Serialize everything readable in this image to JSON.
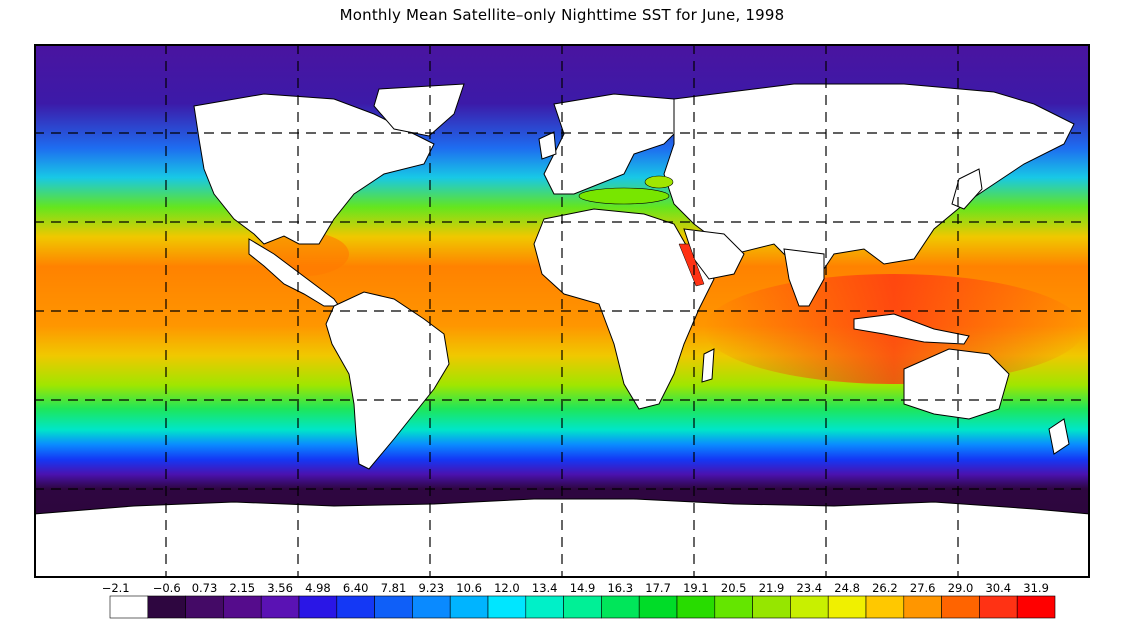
{
  "title": "Monthly Mean Satellite–only Nighttime SST for June, 1998",
  "colorbar": {
    "tick_labels": [
      "−2.1",
      "−0.6",
      "0.73",
      "2.15",
      "3.56",
      "4.98",
      "6.40",
      "7.81",
      "9.23",
      "10.6",
      "12.0",
      "13.4",
      "14.9",
      "16.3",
      "17.7",
      "19.1",
      "20.5",
      "21.9",
      "23.4",
      "24.8",
      "26.2",
      "27.6",
      "29.0",
      "30.4",
      "31.9"
    ],
    "colors": [
      "#ffffff",
      "#2e0640",
      "#440a66",
      "#550c8c",
      "#5a12b4",
      "#2a16e6",
      "#1438f5",
      "#0f5ff8",
      "#0a8aff",
      "#00b4ff",
      "#00e6ff",
      "#00f0c8",
      "#00f096",
      "#00e65a",
      "#00dc28",
      "#28dc00",
      "#64e600",
      "#96e600",
      "#c8f000",
      "#f0f000",
      "#ffc800",
      "#ff9600",
      "#ff6400",
      "#ff3214",
      "#ff0000"
    ]
  },
  "map": {
    "projection": "equirectangular",
    "grid": "dashed",
    "land_color": "#ffffff",
    "ocean_bands": [
      {
        "lat": 90,
        "color": "#4a14a0"
      },
      {
        "lat": 70,
        "color": "#3c1aa8"
      },
      {
        "lat": 55,
        "color": "#1e6cf0"
      },
      {
        "lat": 45,
        "color": "#18c8e6"
      },
      {
        "lat": 35,
        "color": "#64e61e"
      },
      {
        "lat": 25,
        "color": "#f0c800"
      },
      {
        "lat": 15,
        "color": "#ff8200"
      },
      {
        "lat": 5,
        "color": "#ff8c00"
      },
      {
        "lat": -5,
        "color": "#ff9600"
      },
      {
        "lat": -15,
        "color": "#f0c800"
      },
      {
        "lat": -25,
        "color": "#a0e600"
      },
      {
        "lat": -33,
        "color": "#1ee65a"
      },
      {
        "lat": -40,
        "color": "#00e6c8"
      },
      {
        "lat": -45,
        "color": "#0a8cff"
      },
      {
        "lat": -50,
        "color": "#1438f5"
      },
      {
        "lat": -55,
        "color": "#4a12b0"
      },
      {
        "lat": -60,
        "color": "#2e0640"
      },
      {
        "lat": -90,
        "color": "#2a0438"
      }
    ]
  }
}
